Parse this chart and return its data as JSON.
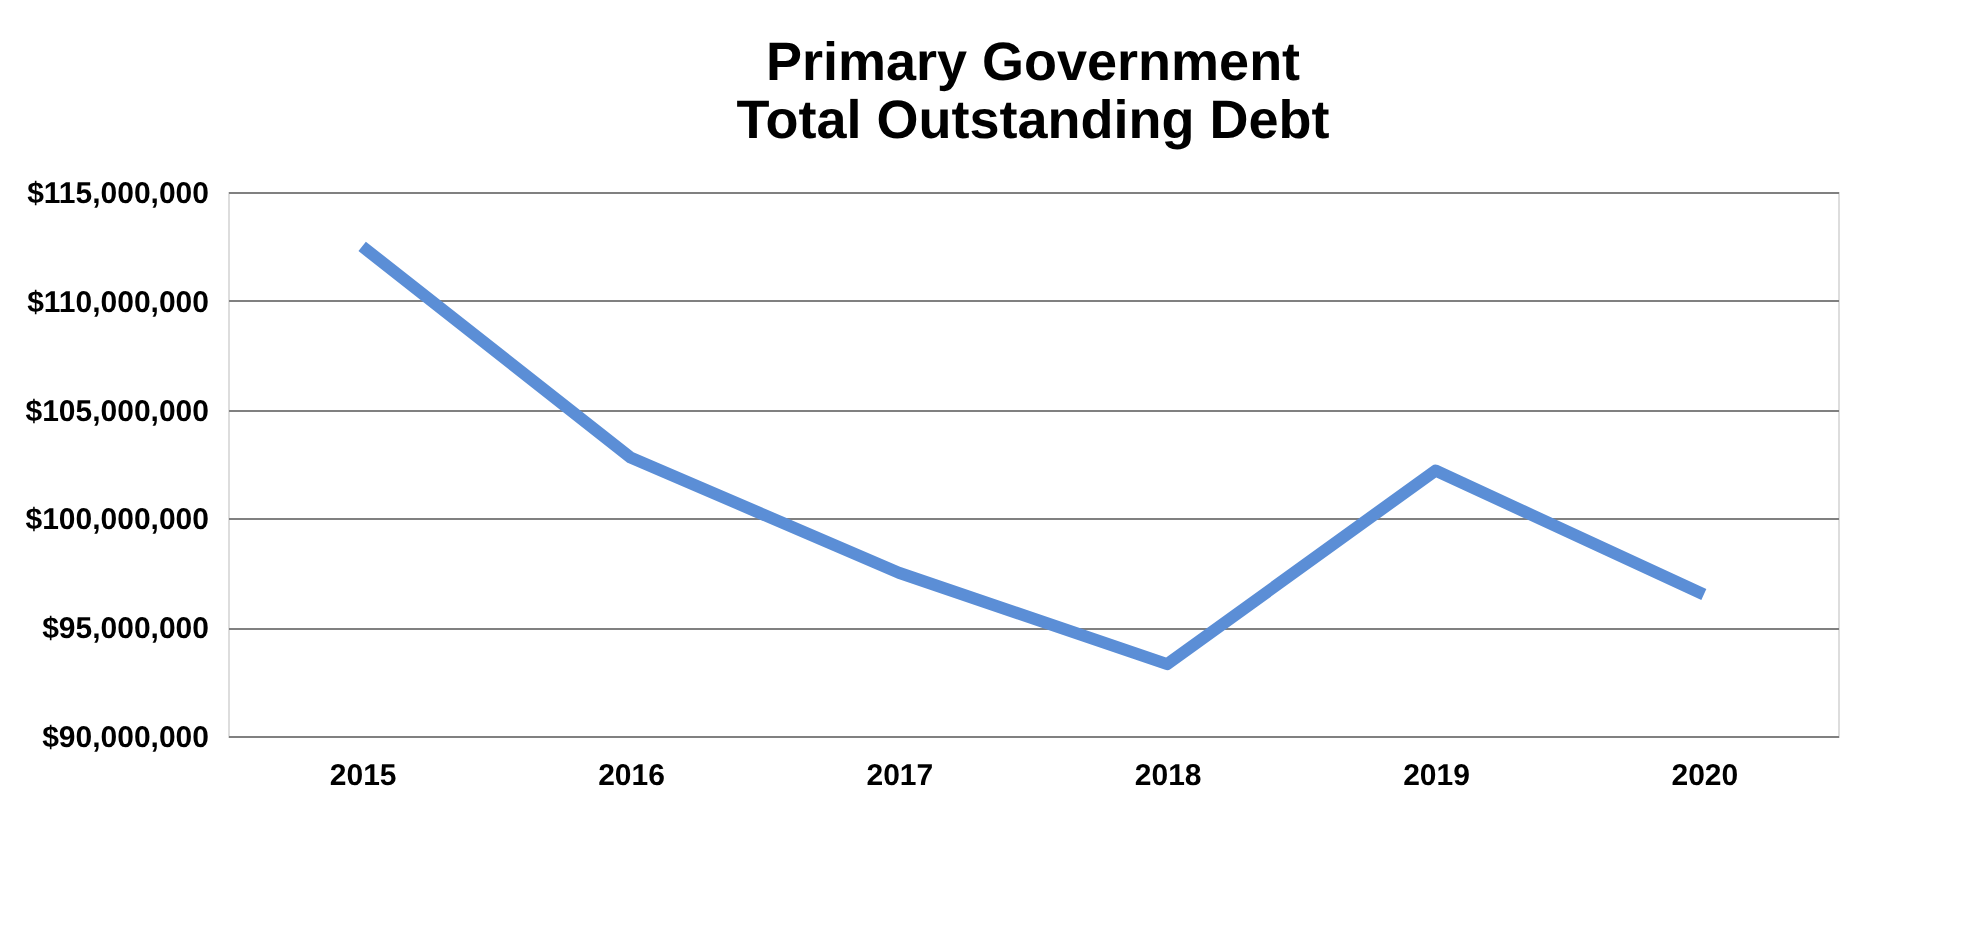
{
  "chart_data": {
    "type": "line",
    "title": "Primary Government\nTotal Outstanding Debt",
    "categories": [
      "2015",
      "2016",
      "2017",
      "2018",
      "2019",
      "2020"
    ],
    "series": [
      {
        "color": "#5b8ed6",
        "values": [
          112500000,
          102800000,
          97500000,
          93300000,
          102200000,
          96500000
        ]
      }
    ],
    "ylim": [
      90000000,
      115000000
    ],
    "yticks": [
      {
        "value": 90000000,
        "label": "$90,000,000"
      },
      {
        "value": 95000000,
        "label": "$95,000,000"
      },
      {
        "value": 100000000,
        "label": "$100,000,000"
      },
      {
        "value": 105000000,
        "label": "$105,000,000"
      },
      {
        "value": 110000000,
        "label": "$110,000,000"
      },
      {
        "value": 115000000,
        "label": "$115,000,000"
      }
    ],
    "grid": "y",
    "legend": false,
    "marker": "none",
    "line_style": "solid"
  }
}
